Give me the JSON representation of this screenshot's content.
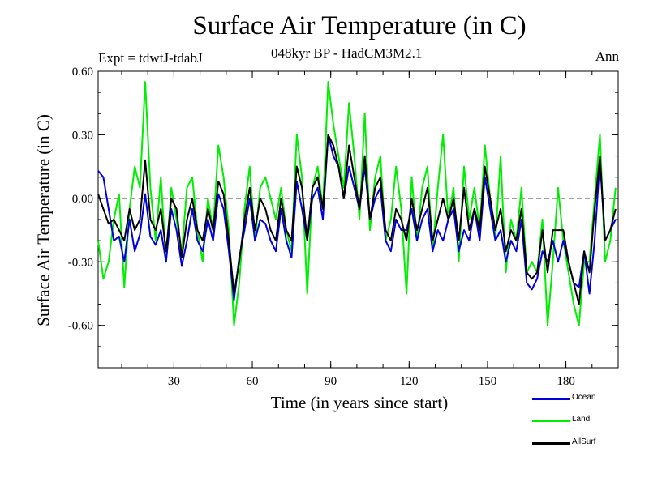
{
  "chart_data": {
    "type": "line",
    "title": "Surface Air Temperature (in C)",
    "subtitle": "048kyr BP - HadCM3M2.1",
    "expt_label": "Expt = tdwtJ-tdabJ",
    "season": "Ann",
    "xlabel": "Time (in years since start)",
    "ylabel": "Surface Air Temperature (in C)",
    "xlim": [
      1,
      200
    ],
    "ylim": [
      -0.8,
      0.6
    ],
    "xticks": [
      30,
      60,
      90,
      120,
      150,
      180
    ],
    "xtick_labels": [
      "30",
      "60",
      "90",
      "120",
      "150",
      "180"
    ],
    "yticks": [
      0.6,
      0.3,
      0.0,
      -0.3,
      -0.6
    ],
    "ytick_labels": [
      "0.60",
      "0.30",
      "0.00",
      "-0.30",
      "-0.60"
    ],
    "zero_line": "dashed",
    "legend_position": "bottom-right",
    "x": [
      1,
      3,
      5,
      7,
      9,
      11,
      13,
      15,
      17,
      19,
      21,
      23,
      25,
      27,
      29,
      31,
      33,
      35,
      37,
      39,
      41,
      43,
      45,
      47,
      49,
      51,
      53,
      55,
      57,
      59,
      61,
      63,
      65,
      67,
      69,
      71,
      73,
      75,
      77,
      79,
      81,
      83,
      85,
      87,
      89,
      91,
      93,
      95,
      97,
      99,
      101,
      103,
      105,
      107,
      109,
      111,
      113,
      115,
      117,
      119,
      121,
      123,
      125,
      127,
      129,
      131,
      133,
      135,
      137,
      139,
      141,
      143,
      145,
      147,
      149,
      151,
      153,
      155,
      157,
      159,
      161,
      163,
      165,
      167,
      169,
      171,
      173,
      175,
      177,
      179,
      181,
      183,
      185,
      187,
      189,
      191,
      193,
      195,
      197,
      199
    ],
    "series": [
      {
        "name": "Ocean",
        "color": "#0000dd",
        "values": [
          0.13,
          0.1,
          -0.05,
          -0.2,
          -0.18,
          -0.3,
          -0.1,
          -0.25,
          -0.17,
          0.02,
          -0.18,
          -0.22,
          -0.15,
          -0.3,
          -0.05,
          -0.15,
          -0.32,
          -0.2,
          -0.05,
          -0.2,
          -0.25,
          -0.1,
          -0.2,
          0.02,
          -0.05,
          -0.25,
          -0.48,
          -0.28,
          -0.15,
          0.0,
          -0.2,
          -0.1,
          -0.12,
          -0.2,
          -0.25,
          -0.05,
          -0.2,
          -0.28,
          0.08,
          -0.05,
          -0.2,
          0.0,
          0.05,
          -0.1,
          0.3,
          0.2,
          0.15,
          0.0,
          0.15,
          0.05,
          -0.05,
          0.15,
          -0.1,
          0.0,
          0.05,
          -0.2,
          -0.25,
          -0.1,
          -0.15,
          -0.15,
          -0.05,
          -0.2,
          -0.1,
          -0.05,
          -0.25,
          -0.15,
          -0.2,
          -0.1,
          -0.05,
          -0.25,
          -0.15,
          -0.2,
          -0.05,
          -0.2,
          0.1,
          -0.05,
          -0.2,
          -0.15,
          -0.3,
          -0.2,
          -0.25,
          -0.1,
          -0.4,
          -0.43,
          -0.38,
          -0.25,
          -0.3,
          -0.2,
          -0.3,
          -0.2,
          -0.3,
          -0.4,
          -0.42,
          -0.25,
          -0.45,
          -0.2,
          0.18,
          -0.2,
          -0.15,
          -0.1
        ]
      },
      {
        "name": "Land",
        "color": "#00ee00",
        "values": [
          -0.2,
          -0.38,
          -0.3,
          -0.1,
          0.02,
          -0.42,
          -0.05,
          0.15,
          0.05,
          0.55,
          0.05,
          -0.2,
          0.1,
          -0.3,
          0.05,
          -0.1,
          -0.25,
          0.05,
          0.1,
          -0.15,
          -0.3,
          0.0,
          -0.15,
          0.25,
          0.1,
          -0.15,
          -0.6,
          -0.4,
          -0.05,
          0.15,
          -0.2,
          0.05,
          0.1,
          0.0,
          -0.1,
          0.05,
          -0.15,
          -0.25,
          0.3,
          0.1,
          -0.45,
          0.05,
          0.15,
          -0.05,
          0.55,
          0.35,
          0.2,
          0.05,
          0.45,
          0.2,
          -0.1,
          0.4,
          -0.15,
          0.1,
          0.2,
          -0.2,
          -0.1,
          0.15,
          -0.05,
          -0.45,
          0.1,
          -0.2,
          0.05,
          0.15,
          -0.25,
          0.05,
          0.3,
          -0.1,
          0.05,
          -0.3,
          0.15,
          -0.1,
          0.05,
          -0.15,
          0.25,
          0.0,
          -0.2,
          0.2,
          -0.35,
          -0.1,
          -0.2,
          0.05,
          -0.35,
          -0.3,
          -0.35,
          -0.1,
          -0.6,
          -0.3,
          0.05,
          -0.2,
          -0.35,
          -0.5,
          -0.6,
          -0.3,
          -0.3,
          0.0,
          0.3,
          -0.3,
          -0.2,
          0.05
        ]
      },
      {
        "name": "AllSurf",
        "color": "#000000",
        "values": [
          0.02,
          -0.05,
          -0.12,
          -0.1,
          -0.15,
          -0.2,
          -0.05,
          -0.15,
          -0.1,
          0.18,
          -0.1,
          -0.15,
          -0.05,
          -0.25,
          0.0,
          -0.05,
          -0.28,
          -0.1,
          0.0,
          -0.15,
          -0.2,
          -0.05,
          -0.15,
          0.08,
          0.02,
          -0.2,
          -0.45,
          -0.3,
          -0.1,
          0.05,
          -0.15,
          0.0,
          -0.05,
          -0.15,
          -0.2,
          0.0,
          -0.15,
          -0.2,
          0.15,
          0.05,
          -0.2,
          0.05,
          0.1,
          -0.05,
          0.3,
          0.25,
          0.15,
          0.0,
          0.25,
          0.1,
          -0.05,
          0.2,
          -0.1,
          0.05,
          0.1,
          -0.15,
          -0.2,
          -0.05,
          -0.1,
          -0.2,
          0.0,
          -0.15,
          -0.05,
          0.05,
          -0.2,
          -0.1,
          0.0,
          -0.1,
          0.0,
          -0.2,
          0.05,
          -0.15,
          -0.05,
          -0.15,
          0.15,
          0.0,
          -0.15,
          -0.05,
          -0.25,
          -0.15,
          -0.2,
          -0.05,
          -0.35,
          -0.38,
          -0.35,
          -0.15,
          -0.35,
          -0.15,
          -0.15,
          -0.15,
          -0.3,
          -0.4,
          -0.5,
          -0.25,
          -0.35,
          -0.05,
          0.2,
          -0.2,
          -0.15,
          -0.05
        ]
      }
    ]
  }
}
